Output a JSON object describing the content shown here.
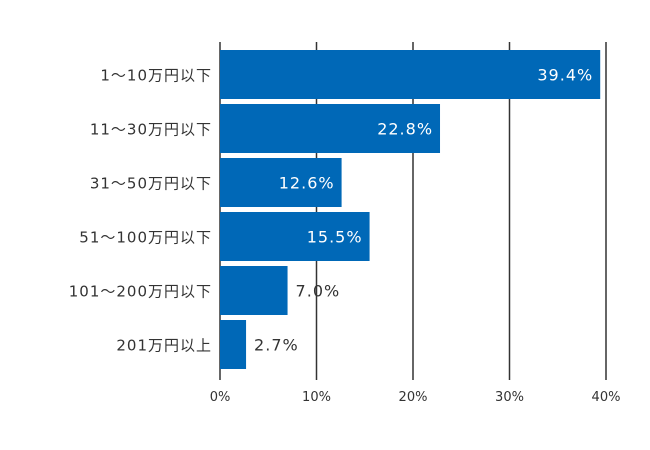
{
  "chart_data": {
    "type": "bar",
    "orientation": "horizontal",
    "categories": [
      "1〜10万円以下",
      "11〜30万円以下",
      "31〜50万円以下",
      "51〜100万円以下",
      "101〜200万円以下",
      "201万円以上"
    ],
    "values": [
      39.4,
      22.8,
      12.6,
      15.5,
      7.0,
      2.7
    ],
    "value_labels": [
      "39.4%",
      "22.8%",
      "12.6%",
      "15.5%",
      "7.0%",
      "2.7%"
    ],
    "x_ticks": [
      0,
      10,
      20,
      30,
      40
    ],
    "x_tick_labels": [
      "0%",
      "10%",
      "20%",
      "30%",
      "40%"
    ],
    "xlim": [
      0,
      40
    ],
    "grid": true,
    "title": "",
    "xlabel": "",
    "ylabel": "",
    "colors": {
      "bar": "#0068b7",
      "grid": "#333333"
    }
  }
}
